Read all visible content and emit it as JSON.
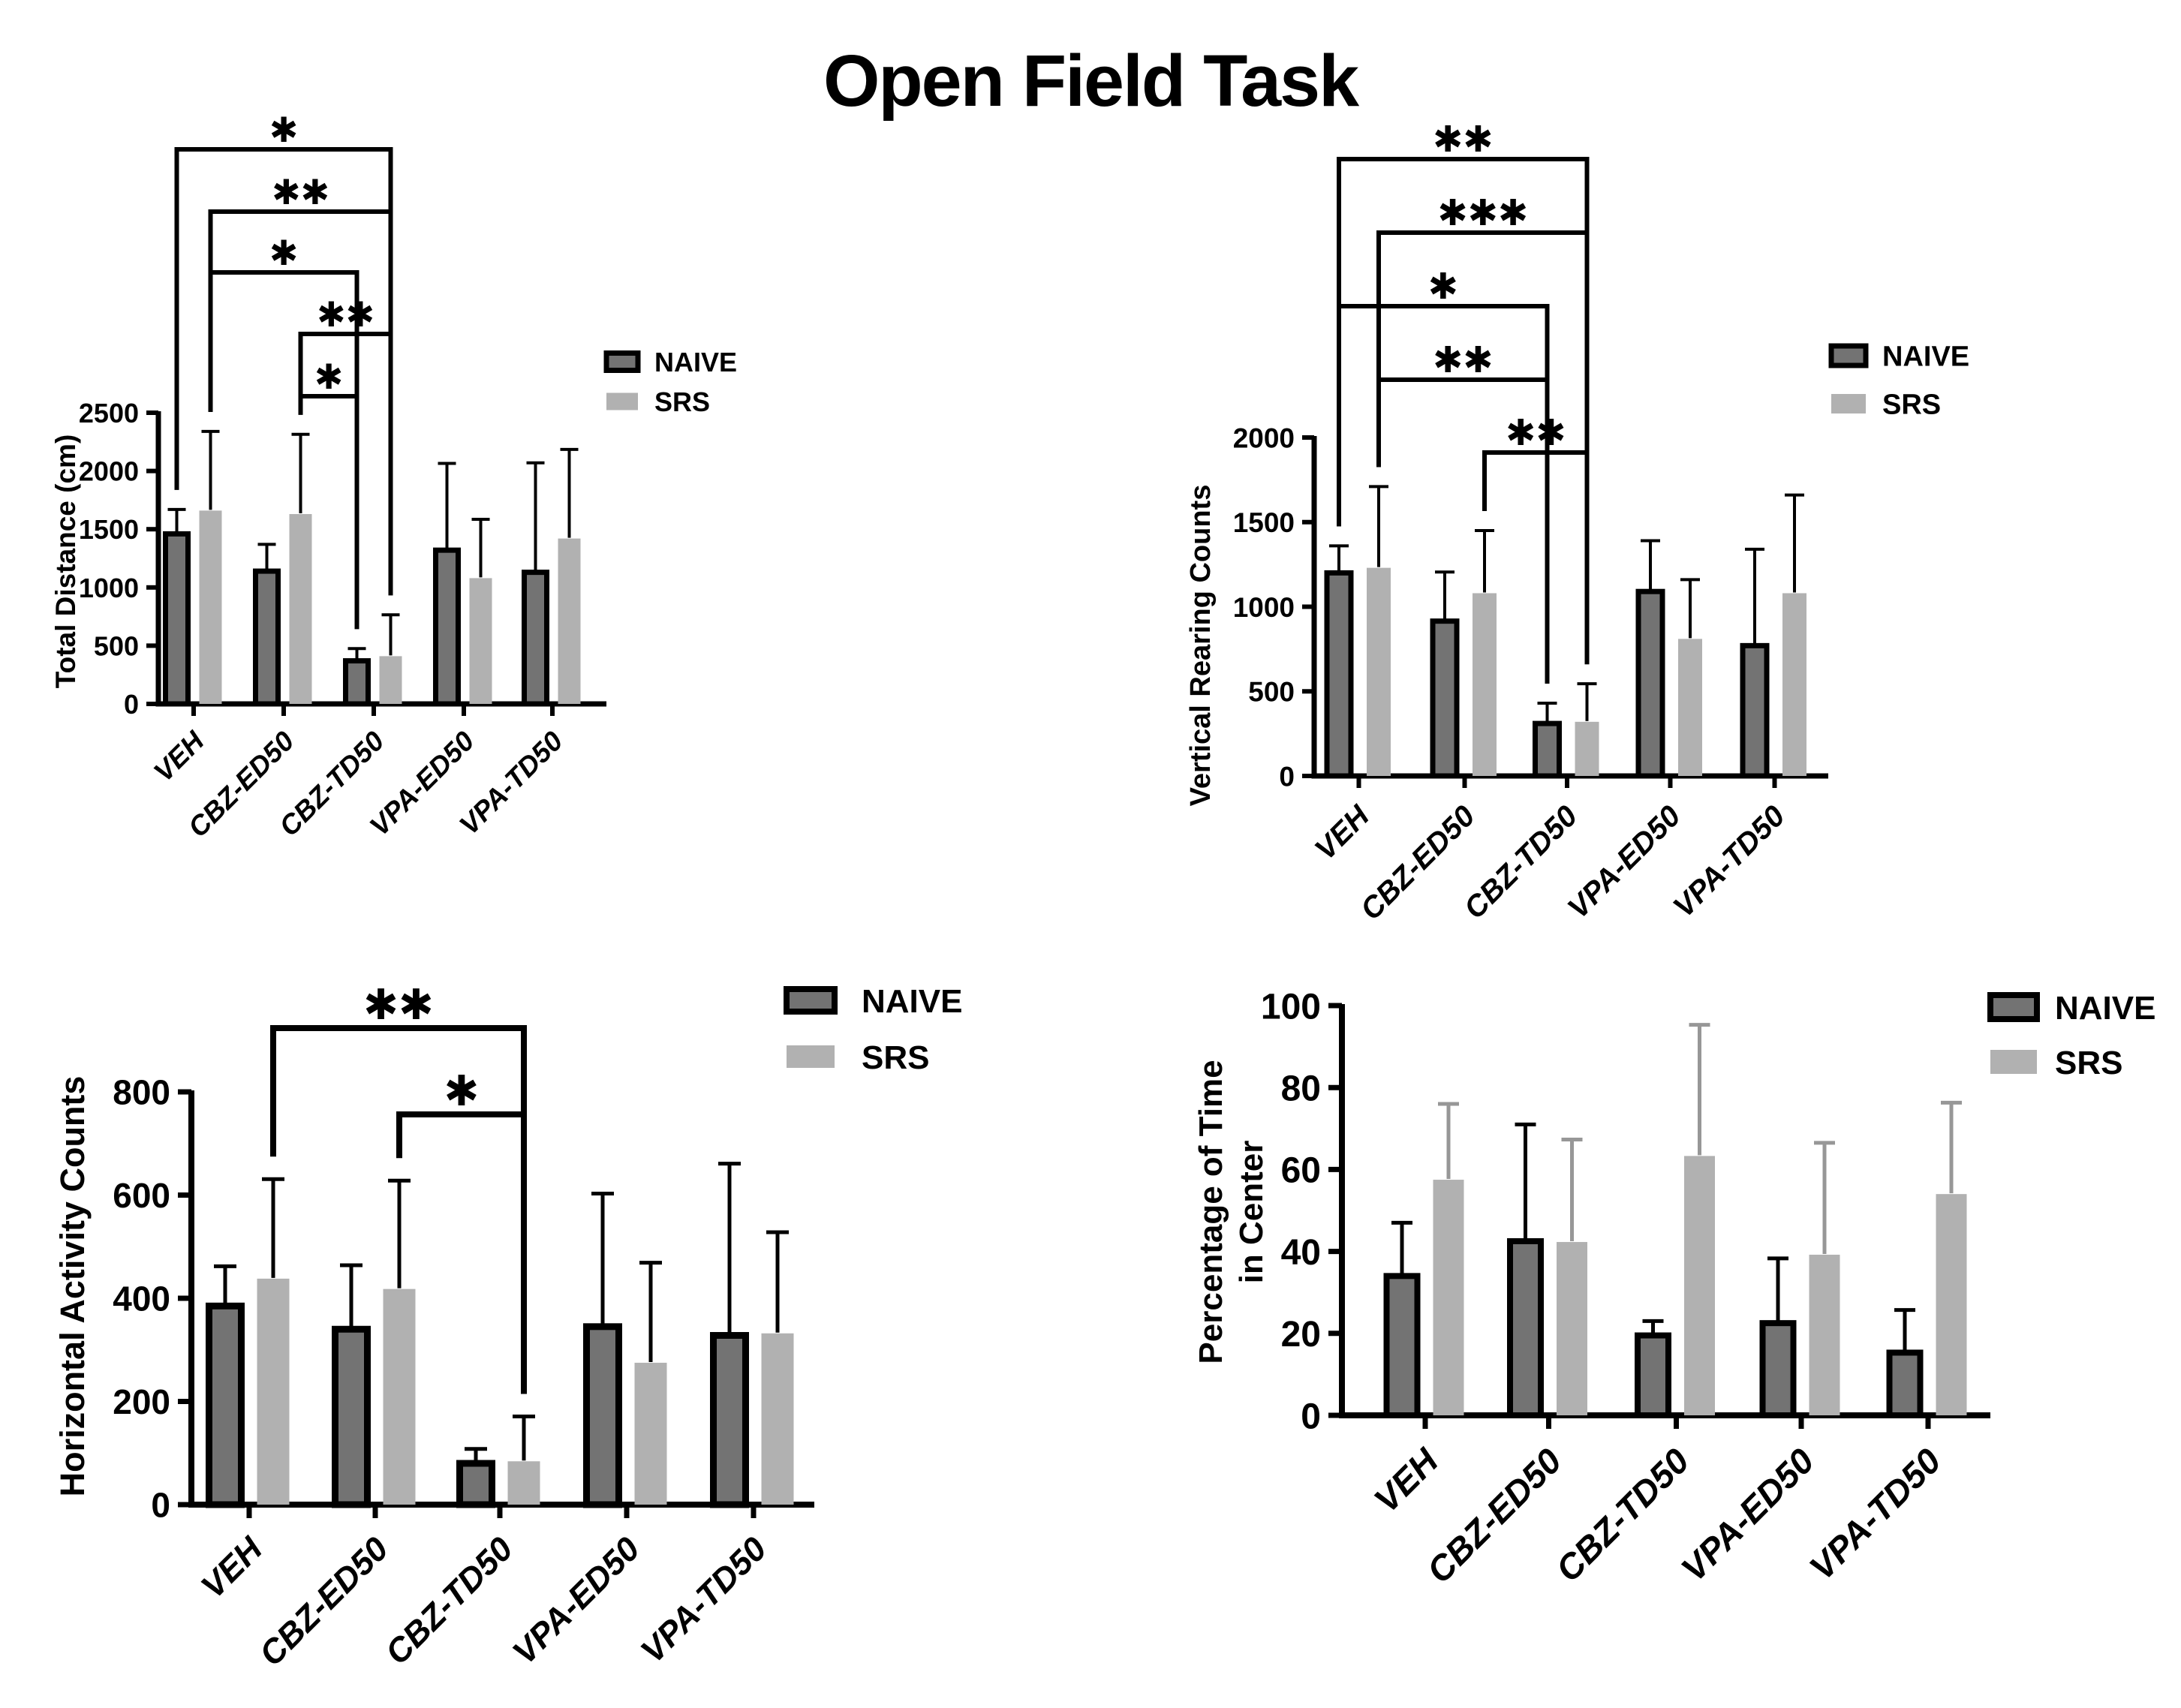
{
  "title": "Open Field Task",
  "legend_labels": [
    "NAIVE",
    "SRS"
  ],
  "colors": {
    "naive_fill": "#737373",
    "naive_border": "#000000",
    "srs_fill": "#b1b1b1",
    "axis": "#000000",
    "error_bar": "#000000",
    "srs_error_bar_bottom_right": "#979797",
    "background": "#ffffff"
  },
  "categories": [
    "VEH",
    "CBZ-ED50",
    "CBZ-TD50",
    "VPA-ED50",
    "VPA-TD50"
  ],
  "chart_data": [
    {
      "id": "total-distance",
      "type": "bar",
      "panel": "top-left",
      "ylabel": "Total Distance (cm)",
      "ylabel_lines": [
        "Total Distance (cm)"
      ],
      "xlabel": "",
      "ylim": [
        0,
        2500
      ],
      "yticks": [
        0,
        500,
        1000,
        1500,
        2000,
        2500
      ],
      "grid": false,
      "legend_position": "right-top",
      "categories": [
        "VEH",
        "CBZ-ED50",
        "CBZ-TD50",
        "VPA-ED50",
        "VPA-TD50"
      ],
      "series": [
        {
          "name": "NAIVE",
          "values": [
            1460,
            1140,
            370,
            1320,
            1130
          ],
          "err_up": [
            210,
            230,
            105,
            745,
            940
          ]
        },
        {
          "name": "SRS",
          "values": [
            1660,
            1630,
            410,
            1080,
            1420
          ],
          "err_up": [
            680,
            685,
            355,
            505,
            765
          ]
        }
      ],
      "significance": [
        {
          "label": "✱",
          "from": {
            "group": 0,
            "series": 0
          },
          "to": {
            "group": 2,
            "series": 1
          }
        },
        {
          "label": "✱✱",
          "from": {
            "group": 0,
            "series": 1
          },
          "to": {
            "group": 2,
            "series": 1
          }
        },
        {
          "label": "✱",
          "from": {
            "group": 0,
            "series": 1
          },
          "to": {
            "group": 2,
            "series": 0
          }
        },
        {
          "label": "✱✱",
          "from": {
            "group": 1,
            "series": 1
          },
          "to": {
            "group": 2,
            "series": 1
          }
        },
        {
          "label": "✱",
          "from": {
            "group": 1,
            "series": 1
          },
          "to": {
            "group": 2,
            "series": 0
          }
        }
      ]
    },
    {
      "id": "vertical-rearing",
      "type": "bar",
      "panel": "top-right",
      "ylabel": "Vertical Rearing Counts",
      "ylabel_lines": [
        "Vertical Rearing Counts"
      ],
      "xlabel": "",
      "ylim": [
        0,
        2000
      ],
      "yticks": [
        0,
        500,
        1000,
        1500,
        2000
      ],
      "grid": false,
      "legend_position": "right-top",
      "categories": [
        "VEH",
        "CBZ-ED50",
        "CBZ-TD50",
        "VPA-ED50",
        "VPA-TD50"
      ],
      "series": [
        {
          "name": "NAIVE",
          "values": [
            1200,
            915,
            310,
            1090,
            770
          ],
          "err_up": [
            160,
            290,
            120,
            300,
            570
          ]
        },
        {
          "name": "SRS",
          "values": [
            1230,
            1080,
            320,
            810,
            1080
          ],
          "err_up": [
            480,
            370,
            225,
            350,
            580
          ]
        }
      ],
      "significance": [
        {
          "label": "✱✱",
          "from": {
            "group": 0,
            "series": 0
          },
          "to": {
            "group": 2,
            "series": 1
          }
        },
        {
          "label": "✱✱✱",
          "from": {
            "group": 0,
            "series": 1
          },
          "to": {
            "group": 2,
            "series": 1
          }
        },
        {
          "label": "✱",
          "from": {
            "group": 0,
            "series": 0
          },
          "to": {
            "group": 2,
            "series": 0
          }
        },
        {
          "label": "✱✱",
          "from": {
            "group": 0,
            "series": 1
          },
          "to": {
            "group": 2,
            "series": 0
          }
        },
        {
          "label": "✱✱",
          "from": {
            "group": 1,
            "series": 1
          },
          "to": {
            "group": 2,
            "series": 1
          }
        }
      ]
    },
    {
      "id": "horizontal-activity",
      "type": "bar",
      "panel": "bottom-left",
      "ylabel": "Horizontal Activity Counts",
      "ylabel_lines": [
        "Horizontal Activity Counts"
      ],
      "xlabel": "",
      "ylim": [
        0,
        800
      ],
      "yticks": [
        0,
        200,
        400,
        600,
        800
      ],
      "grid": false,
      "legend_position": "right-top",
      "categories": [
        "VEH",
        "CBZ-ED50",
        "CBZ-TD50",
        "VPA-ED50",
        "VPA-TD50"
      ],
      "series": [
        {
          "name": "NAIVE",
          "values": [
            385,
            340,
            80,
            345,
            328
          ],
          "err_up": [
            77,
            124,
            28,
            258,
            333
          ]
        },
        {
          "name": "SRS",
          "values": [
            438,
            418,
            84,
            275,
            332
          ],
          "err_up": [
            193,
            210,
            87,
            194,
            196
          ]
        }
      ],
      "significance": [
        {
          "label": "✱✱",
          "from": {
            "group": 0,
            "series": 1
          },
          "to": {
            "group": 2,
            "series": 1
          }
        },
        {
          "label": "✱",
          "from": {
            "group": 1,
            "series": 1
          },
          "to": {
            "group": 2,
            "series": 1
          }
        }
      ]
    },
    {
      "id": "time-in-center",
      "type": "bar",
      "panel": "bottom-right",
      "ylabel": "Percentage of Time in Center",
      "ylabel_lines": [
        "Percentage of Time",
        "in Center"
      ],
      "xlabel": "",
      "ylim": [
        0,
        100
      ],
      "yticks": [
        0,
        20,
        40,
        60,
        80,
        100
      ],
      "grid": false,
      "legend_position": "right-top",
      "categories": [
        "VEH",
        "CBZ-ED50",
        "CBZ-TD50",
        "VPA-ED50",
        "VPA-TD50"
      ],
      "series": [
        {
          "name": "NAIVE",
          "values": [
            34,
            42.5,
            19.5,
            22.5,
            15.3
          ],
          "err_up": [
            13,
            28.5,
            3.5,
            15.8,
            10.4
          ]
        },
        {
          "name": "SRS",
          "values": [
            57.5,
            42.3,
            63.3,
            39.2,
            54
          ],
          "err_up": [
            18.5,
            25,
            32,
            27.3,
            22.3
          ]
        }
      ],
      "significance": []
    }
  ]
}
